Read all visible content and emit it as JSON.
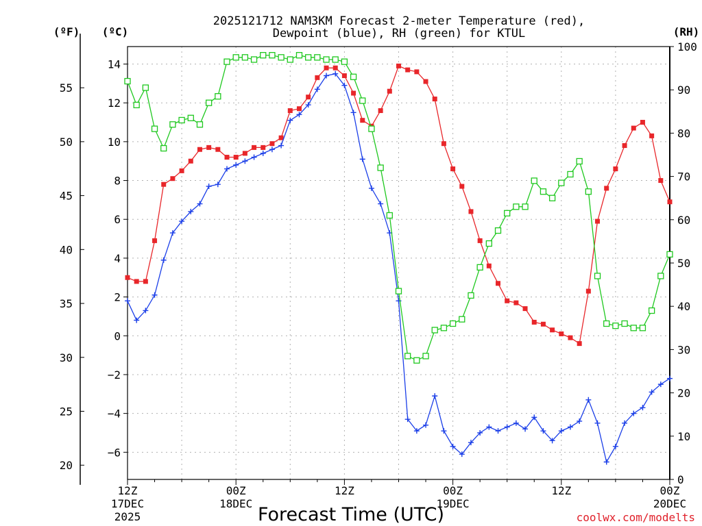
{
  "chart_data": {
    "type": "line",
    "title": "2025121712 NAM3KM Forecast 2-meter Temperature (red),",
    "subtitle": "Dewpoint (blue), RH (green) for KTUL",
    "xlabel": "Forecast Time (UTC)",
    "credit": "coolwx.com/modelts",
    "x_hours": [
      0,
      1,
      2,
      3,
      4,
      5,
      6,
      7,
      8,
      9,
      10,
      11,
      12,
      13,
      14,
      15,
      16,
      17,
      18,
      19,
      20,
      21,
      22,
      23,
      24,
      25,
      26,
      27,
      28,
      29,
      30,
      31,
      32,
      33,
      34,
      35,
      36,
      37,
      38,
      39,
      40,
      41,
      42,
      43,
      44,
      45,
      46,
      47,
      48,
      49,
      50,
      51,
      52,
      53,
      54,
      55,
      56,
      57,
      58,
      59,
      60
    ],
    "xlim": [
      0,
      60
    ],
    "x_ticks": [
      {
        "hour": 0,
        "line1": "12Z",
        "line2": "17DEC",
        "line3": "2025"
      },
      {
        "hour": 12,
        "line1": "00Z",
        "line2": "18DEC",
        "line3": ""
      },
      {
        "hour": 24,
        "line1": "12Z",
        "line2": "",
        "line3": ""
      },
      {
        "hour": 36,
        "line1": "00Z",
        "line2": "19DEC",
        "line3": ""
      },
      {
        "hour": 48,
        "line1": "12Z",
        "line2": "",
        "line3": ""
      },
      {
        "hour": 60,
        "line1": "00Z",
        "line2": "20DEC",
        "line3": ""
      }
    ],
    "y_celsius": {
      "label": "(ºC)",
      "lim": [
        -7.4,
        14.9
      ],
      "ticks": [
        14,
        12,
        10,
        8,
        6,
        4,
        2,
        0,
        -2,
        -4,
        -6
      ]
    },
    "y_fahrenheit": {
      "label": "(ºF)",
      "ticks": [
        55,
        50,
        45,
        40,
        35,
        30,
        25,
        20
      ]
    },
    "y_rh": {
      "label": "(RH)",
      "lim": [
        0,
        100
      ],
      "ticks": [
        100,
        90,
        80,
        70,
        60,
        50,
        40,
        30,
        20,
        10,
        0
      ]
    },
    "series": [
      {
        "name": "2-meter Temperature",
        "units": "C",
        "color": "#e8262a",
        "marker": "filled-square",
        "values": [
          3,
          2.8,
          2.8,
          4.9,
          7.8,
          8.1,
          8.5,
          9,
          9.6,
          9.7,
          9.6,
          9.2,
          9.2,
          9.4,
          9.7,
          9.7,
          9.9,
          10.2,
          11.6,
          11.7,
          12.3,
          13.3,
          13.8,
          13.8,
          13.4,
          12.5,
          11.1,
          10.8,
          11.6,
          12.6,
          13.9,
          13.7,
          13.6,
          13.1,
          12.2,
          9.9,
          8.6,
          7.7,
          6.4,
          4.9,
          3.6,
          2.7,
          1.8,
          1.7,
          1.4,
          0.7,
          0.6,
          0.3,
          0.1,
          -0.1,
          -0.4,
          2.3,
          5.9,
          7.6,
          8.6,
          9.8,
          10.7,
          11,
          10.3,
          8,
          6.9
        ]
      },
      {
        "name": "Dewpoint",
        "units": "C",
        "color": "#1a3ee8",
        "marker": "plus",
        "values": [
          1.8,
          0.8,
          1.3,
          2.1,
          3.9,
          5.3,
          5.9,
          6.4,
          6.8,
          7.7,
          7.8,
          8.6,
          8.8,
          9,
          9.2,
          9.4,
          9.6,
          9.8,
          11.1,
          11.4,
          11.9,
          12.7,
          13.4,
          13.5,
          12.9,
          11.5,
          9.1,
          7.6,
          6.8,
          5.3,
          1.8,
          -4.3,
          -4.9,
          -4.6,
          -3.1,
          -4.9,
          -5.7,
          -6.1,
          -5.5,
          -5,
          -4.7,
          -4.9,
          -4.7,
          -4.5,
          -4.8,
          -4.2,
          -4.9,
          -5.4,
          -4.9,
          -4.7,
          -4.4,
          -3.3,
          -4.5,
          -6.5,
          -5.7,
          -4.5,
          -4,
          -3.7,
          -2.9,
          -2.5,
          -2.2
        ]
      },
      {
        "name": "RH",
        "units": "%",
        "color": "#1ec81e",
        "marker": "open-square",
        "values": [
          92,
          86.5,
          90.5,
          81,
          76.5,
          82,
          83,
          83.5,
          82,
          87,
          88.5,
          96.5,
          97.5,
          97.5,
          97,
          98,
          98,
          97.5,
          97,
          98,
          97.5,
          97.5,
          97,
          97,
          96.5,
          93,
          87.5,
          81,
          72,
          61,
          43.5,
          28.5,
          27.5,
          28.5,
          34.5,
          35,
          36,
          37,
          42.5,
          49,
          54.5,
          57.5,
          61.5,
          63,
          63,
          69,
          66.5,
          65,
          68.5,
          70.5,
          73.5,
          66.5,
          47,
          36,
          35.5,
          36,
          35,
          35,
          39,
          47,
          52
        ]
      }
    ]
  }
}
